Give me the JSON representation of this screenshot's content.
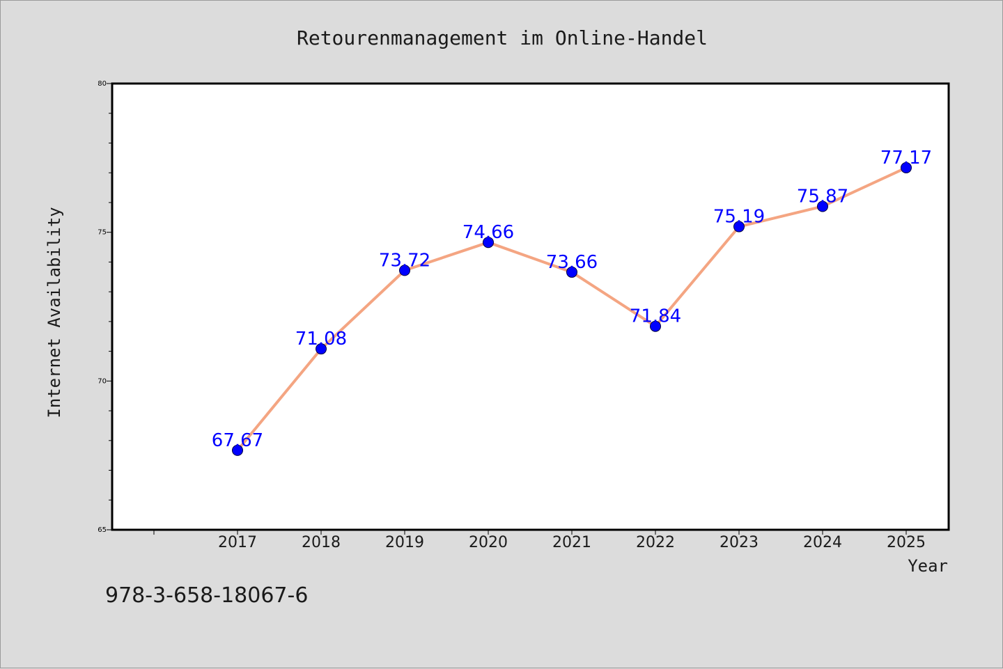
{
  "chart_data": {
    "type": "line",
    "title": "Retourenmanagement im Online-Handel",
    "xlabel": "Year",
    "ylabel": "Internet Availability",
    "categories": [
      "2017",
      "2018",
      "2019",
      "2020",
      "2021",
      "2022",
      "2023",
      "2024",
      "2025"
    ],
    "series": [
      {
        "values": [
          67.67,
          71.08,
          73.72,
          74.66,
          73.66,
          71.84,
          75.19,
          75.87,
          77.17
        ]
      }
    ],
    "data_labels": [
      "67.67",
      "71.08",
      "73.72",
      "74.66",
      "73.66",
      "71.84",
      "75.19",
      "75.87",
      "77.17"
    ],
    "ylim": [
      65,
      80
    ],
    "yticks": [
      65,
      70,
      75,
      80
    ],
    "grid": false,
    "legend": "none",
    "colors": {
      "background": "#dcdcdc",
      "plot_background": "#ffffff",
      "line": "#f4a582",
      "marker": "#0000ff",
      "data_label": "#0000ff",
      "text": "#1a1a1a"
    }
  },
  "footer_text": "978-3-658-18067-6"
}
